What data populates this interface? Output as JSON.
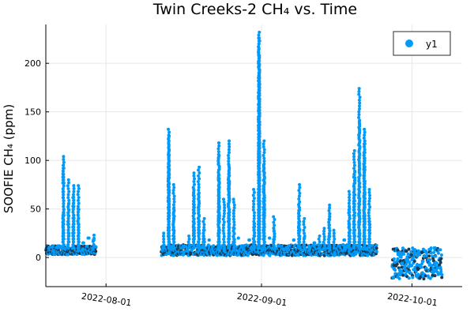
{
  "chart_data": {
    "type": "scatter",
    "title": "Twin Creeks-2 CH₄ vs. Time",
    "ylabel": "SOOFIE CH₄ (ppm)",
    "xlabel": "",
    "x_axis_type": "date",
    "xlim": [
      "2022-07-20",
      "2022-10-11"
    ],
    "ylim": [
      -30,
      240
    ],
    "x_ticks": [
      "2022-08-01",
      "2022-09-01",
      "2022-10-01"
    ],
    "x_tick_labels": [
      "2022-08-01",
      "2022-09-01",
      "2022-10-01"
    ],
    "y_ticks": [
      0,
      50,
      100,
      150,
      200
    ],
    "y_tick_labels": [
      "0",
      "50",
      "100",
      "150",
      "200"
    ],
    "grid": true,
    "legend_position": "top-right",
    "marker_color": "#009AFA",
    "marker_edge_color": "#1a3a52",
    "series": [
      {
        "name": "y1",
        "points": [
          [
            "2022-07-21",
            7
          ],
          [
            "2022-07-22",
            12
          ],
          [
            "2022-07-23",
            45
          ],
          [
            "2022-07-23",
            95
          ],
          [
            "2022-07-23",
            104
          ],
          [
            "2022-07-24",
            80
          ],
          [
            "2022-07-24",
            55
          ],
          [
            "2022-07-25",
            28
          ],
          [
            "2022-07-25",
            74
          ],
          [
            "2022-07-25",
            62
          ],
          [
            "2022-07-26",
            40
          ],
          [
            "2022-07-26",
            74
          ],
          [
            "2022-07-26",
            50
          ],
          [
            "2022-07-27",
            15
          ],
          [
            "2022-07-28",
            20
          ],
          [
            "2022-07-29",
            23
          ],
          [
            "2022-07-29",
            18
          ],
          [
            "2022-08-12",
            10
          ],
          [
            "2022-08-12",
            25
          ],
          [
            "2022-08-13",
            90
          ],
          [
            "2022-08-13",
            106
          ],
          [
            "2022-08-13",
            125
          ],
          [
            "2022-08-13",
            132
          ],
          [
            "2022-08-14",
            75
          ],
          [
            "2022-08-14",
            50
          ],
          [
            "2022-08-16",
            12
          ],
          [
            "2022-08-17",
            22
          ],
          [
            "2022-08-18",
            35
          ],
          [
            "2022-08-18",
            70
          ],
          [
            "2022-08-18",
            87
          ],
          [
            "2022-08-19",
            93
          ],
          [
            "2022-08-19",
            65
          ],
          [
            "2022-08-20",
            40
          ],
          [
            "2022-08-20",
            28
          ],
          [
            "2022-08-21",
            18
          ],
          [
            "2022-08-22",
            12
          ],
          [
            "2022-08-23",
            50
          ],
          [
            "2022-08-23",
            80
          ],
          [
            "2022-08-23",
            105
          ],
          [
            "2022-08-23",
            118
          ],
          [
            "2022-08-24",
            60
          ],
          [
            "2022-08-25",
            80
          ],
          [
            "2022-08-25",
            120
          ],
          [
            "2022-08-25",
            95
          ],
          [
            "2022-08-26",
            30
          ],
          [
            "2022-08-26",
            60
          ],
          [
            "2022-08-27",
            20
          ],
          [
            "2022-08-28",
            12
          ],
          [
            "2022-08-29",
            18
          ],
          [
            "2022-08-30",
            35
          ],
          [
            "2022-08-30",
            70
          ],
          [
            "2022-08-31",
            80
          ],
          [
            "2022-08-31",
            110
          ],
          [
            "2022-08-31",
            140
          ],
          [
            "2022-08-31",
            160
          ],
          [
            "2022-08-31",
            185
          ],
          [
            "2022-08-31",
            200
          ],
          [
            "2022-08-31",
            215
          ],
          [
            "2022-08-31",
            226
          ],
          [
            "2022-08-31",
            232
          ],
          [
            "2022-09-01",
            120
          ],
          [
            "2022-09-01",
            95
          ],
          [
            "2022-09-01",
            70
          ],
          [
            "2022-09-01",
            50
          ],
          [
            "2022-09-02",
            20
          ],
          [
            "2022-09-03",
            42
          ],
          [
            "2022-09-03",
            30
          ],
          [
            "2022-09-04",
            12
          ],
          [
            "2022-09-05",
            8
          ],
          [
            "2022-09-06",
            12
          ],
          [
            "2022-09-07",
            18
          ],
          [
            "2022-09-08",
            35
          ],
          [
            "2022-09-08",
            55
          ],
          [
            "2022-09-08",
            75
          ],
          [
            "2022-09-09",
            40
          ],
          [
            "2022-09-09",
            20
          ],
          [
            "2022-09-10",
            12
          ],
          [
            "2022-09-11",
            15
          ],
          [
            "2022-09-12",
            22
          ],
          [
            "2022-09-13",
            30
          ],
          [
            "2022-09-14",
            45
          ],
          [
            "2022-09-14",
            54
          ],
          [
            "2022-09-15",
            28
          ],
          [
            "2022-09-16",
            12
          ],
          [
            "2022-09-17",
            10
          ],
          [
            "2022-09-17",
            18
          ],
          [
            "2022-09-18",
            35
          ],
          [
            "2022-09-18",
            52
          ],
          [
            "2022-09-18",
            68
          ],
          [
            "2022-09-19",
            25
          ],
          [
            "2022-09-19",
            110
          ],
          [
            "2022-09-19",
            88
          ],
          [
            "2022-09-20",
            45
          ],
          [
            "2022-09-20",
            140
          ],
          [
            "2022-09-20",
            174
          ],
          [
            "2022-09-21",
            120
          ],
          [
            "2022-09-21",
            65
          ],
          [
            "2022-09-21",
            132
          ],
          [
            "2022-09-21",
            100
          ],
          [
            "2022-09-22",
            70
          ],
          [
            "2022-09-22",
            40
          ],
          [
            "2022-09-22",
            12
          ],
          [
            "2022-09-27",
            -5
          ],
          [
            "2022-09-27",
            -12
          ],
          [
            "2022-09-28",
            5
          ],
          [
            "2022-09-28",
            -18
          ],
          [
            "2022-09-29",
            -10
          ],
          [
            "2022-09-30",
            -15
          ],
          [
            "2022-10-01",
            5
          ],
          [
            "2022-10-01",
            8
          ],
          [
            "2022-10-02",
            -8
          ],
          [
            "2022-10-02",
            3
          ],
          [
            "2022-10-03",
            7
          ],
          [
            "2022-10-04",
            -6
          ],
          [
            "2022-10-05",
            10
          ]
        ]
      }
    ],
    "segments": [
      {
        "x_start": "2022-07-20",
        "x_end": "2022-07-30",
        "base_low": 3,
        "base_high": 12
      },
      {
        "x_start": "2022-08-12",
        "x_end": "2022-09-24",
        "base_low": 2,
        "base_high": 13
      },
      {
        "x_start": "2022-09-27",
        "x_end": "2022-10-07",
        "base_low": -22,
        "base_high": 10
      }
    ]
  }
}
